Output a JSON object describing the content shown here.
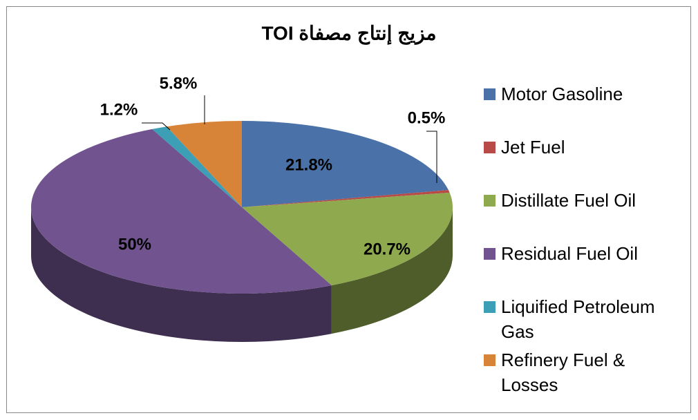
{
  "chart_data": {
    "type": "pie",
    "title": "مزيج إنتاج مصفاة TOI",
    "categories": [
      "Motor Gasoline",
      "Jet Fuel",
      "Distillate Fuel Oil",
      "Residual Fuel Oil",
      "Liquified Petroleum Gas",
      "Refinery Fuel & Losses"
    ],
    "values": [
      21.8,
      0.5,
      20.7,
      50,
      1.2,
      5.8
    ],
    "value_labels": [
      "21.8%",
      "0.5%",
      "20.7%",
      "50%",
      "1.2%",
      "5.8%"
    ],
    "colors": [
      "#4a72a8",
      "#b84a47",
      "#8fa94f",
      "#71548f",
      "#3d9fb5",
      "#d88438"
    ],
    "legend": "right"
  }
}
